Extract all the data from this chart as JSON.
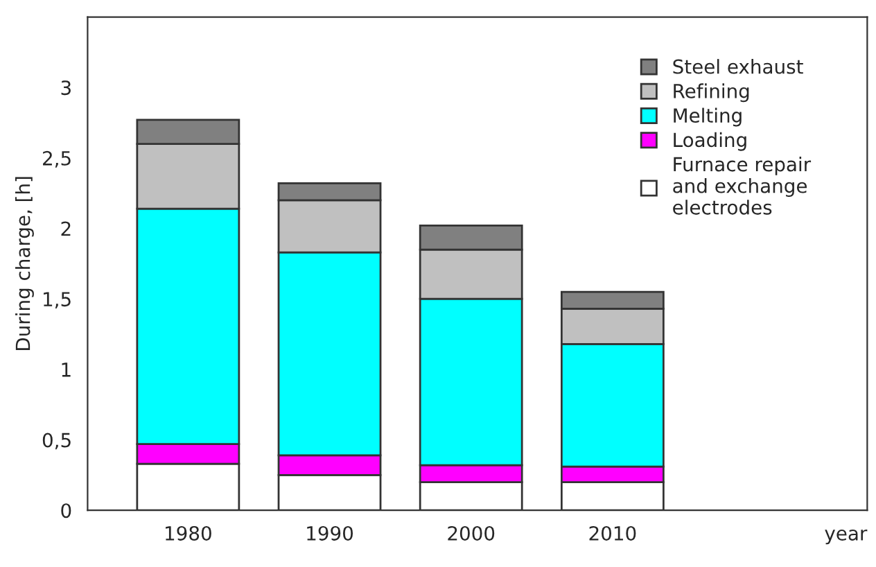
{
  "chart_data": {
    "type": "bar",
    "stacked": true,
    "annotations": [
      "year"
    ],
    "ylabel": "During charge, [h]",
    "categories": [
      "1980",
      "1990",
      "2000",
      "2010"
    ],
    "series": [
      {
        "name": "Furnace repair\nand exchange\nelectrodes",
        "color": "#ffffff",
        "values": [
          0.33,
          0.25,
          0.2,
          0.2
        ]
      },
      {
        "name": "Loading",
        "color": "#ff00ff",
        "values": [
          0.14,
          0.14,
          0.12,
          0.11
        ]
      },
      {
        "name": "Melting",
        "color": "#00ffff",
        "values": [
          1.67,
          1.44,
          1.18,
          0.87
        ]
      },
      {
        "name": "Refining",
        "color": "#c0c0c0",
        "values": [
          0.46,
          0.37,
          0.35,
          0.25
        ]
      },
      {
        "name": "Steel exhaust",
        "color": "#808080",
        "values": [
          0.17,
          0.12,
          0.17,
          0.12
        ]
      }
    ],
    "ylim": [
      0,
      3.5
    ],
    "yticks": [
      0,
      {
        "value": 0.5,
        "label": "0,5"
      },
      1,
      {
        "value": 1.5,
        "label": "1,5"
      },
      2,
      {
        "value": 2.5,
        "label": "2,5"
      },
      3
    ],
    "grid": false,
    "legend": "top right"
  }
}
